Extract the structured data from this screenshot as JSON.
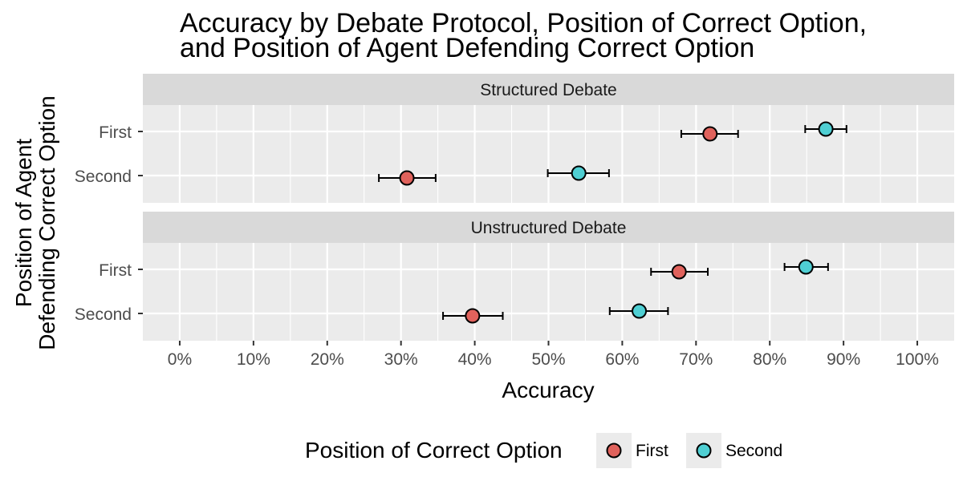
{
  "chart_data": {
    "type": "scatter",
    "title_lines": [
      "Accuracy by Debate Protocol, Position of Correct Option,",
      "and Position of Agent Defending Correct Option"
    ],
    "xlabel": "Accuracy",
    "ylabel_lines": [
      "Position of Agent",
      "Defending Correct Option"
    ],
    "xlim": [
      -0.05,
      1.05
    ],
    "x_ticks": [
      0,
      0.1,
      0.2,
      0.3,
      0.4,
      0.5,
      0.6,
      0.7,
      0.8,
      0.9,
      1.0
    ],
    "x_tick_labels": [
      "0%",
      "10%",
      "20%",
      "30%",
      "40%",
      "50%",
      "60%",
      "70%",
      "80%",
      "90%",
      "100%"
    ],
    "y_categories": [
      "First",
      "Second"
    ],
    "grid": true,
    "legend": {
      "title": "Position of Correct Option",
      "placement": "bottom",
      "entries": [
        {
          "label": "First",
          "color": "#e0625c"
        },
        {
          "label": "Second",
          "color": "#4fcfd3"
        }
      ]
    },
    "facets": [
      {
        "name": "Structured Debate",
        "points": [
          {
            "agent": "First",
            "correct": "First",
            "accuracy": 0.719,
            "ci": [
              0.68,
              0.757
            ]
          },
          {
            "agent": "First",
            "correct": "Second",
            "accuracy": 0.876,
            "ci": [
              0.848,
              0.904
            ]
          },
          {
            "agent": "Second",
            "correct": "First",
            "accuracy": 0.308,
            "ci": [
              0.27,
              0.347
            ]
          },
          {
            "agent": "Second",
            "correct": "Second",
            "accuracy": 0.541,
            "ci": [
              0.499,
              0.582
            ]
          }
        ]
      },
      {
        "name": "Unstructured Debate",
        "points": [
          {
            "agent": "First",
            "correct": "First",
            "accuracy": 0.677,
            "ci": [
              0.639,
              0.716
            ]
          },
          {
            "agent": "First",
            "correct": "Second",
            "accuracy": 0.849,
            "ci": [
              0.82,
              0.879
            ]
          },
          {
            "agent": "Second",
            "correct": "First",
            "accuracy": 0.397,
            "ci": [
              0.357,
              0.438
            ]
          },
          {
            "agent": "Second",
            "correct": "Second",
            "accuracy": 0.623,
            "ci": [
              0.583,
              0.662
            ]
          }
        ]
      }
    ]
  }
}
